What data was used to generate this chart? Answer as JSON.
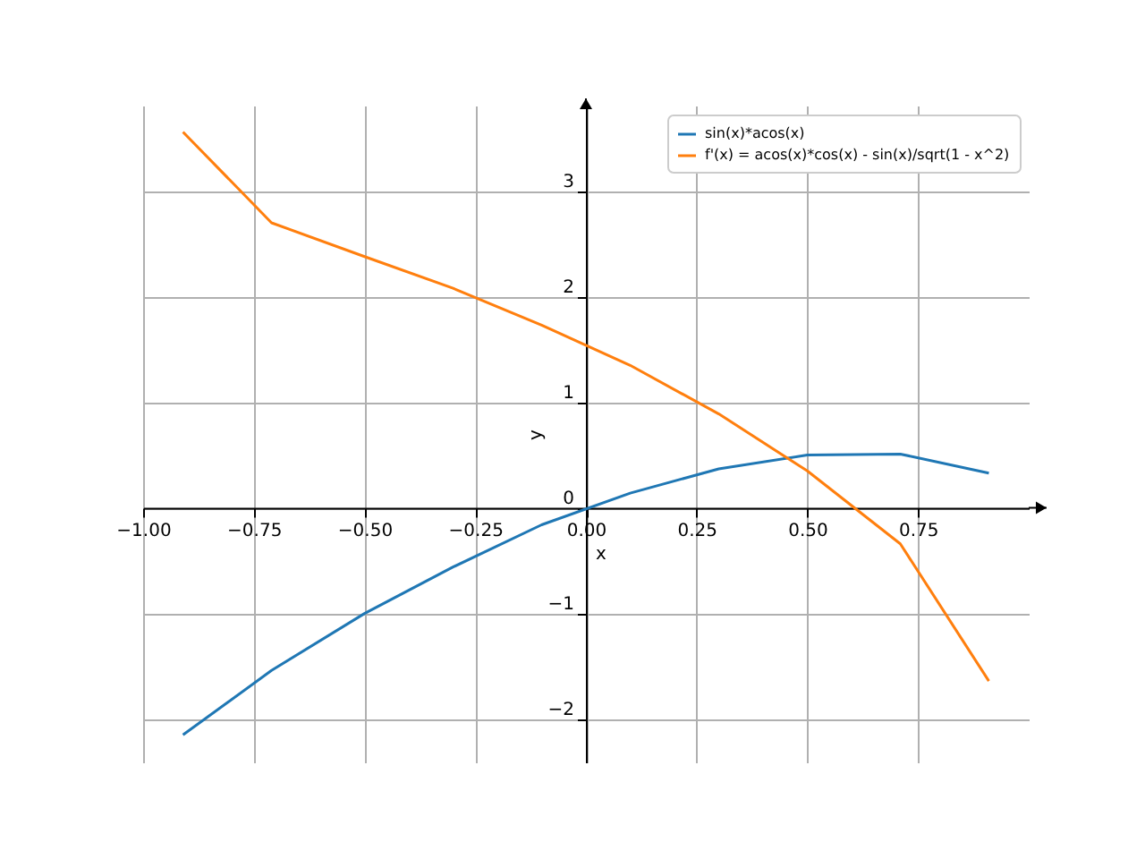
{
  "chart_data": {
    "type": "line",
    "xlabel": "x",
    "ylabel": "y",
    "x": [
      -0.91,
      -0.71,
      -0.5,
      -0.3,
      -0.1,
      0.1,
      0.3,
      0.5,
      0.71,
      0.91
    ],
    "series": [
      {
        "name": "sin(x)*acos(x)",
        "color": "#1f77b4",
        "values": [
          -2.15,
          -1.54,
          -1.0,
          -0.56,
          -0.16,
          0.14,
          0.37,
          0.5,
          0.51,
          0.33
        ]
      },
      {
        "name": "f'(x) = acos(x)*cos(x) - sin(x)/sqrt(1 - x^2)",
        "color": "#ff7f0e",
        "values": [
          3.56,
          2.7,
          2.38,
          2.08,
          1.73,
          1.35,
          0.89,
          0.35,
          -0.34,
          -1.64
        ]
      }
    ],
    "xlim": [
      -1.0,
      1.0
    ],
    "ylim": [
      -2.41,
      3.81
    ],
    "xticks": [
      {
        "value": -1,
        "label": "−1.00"
      },
      {
        "value": -0.75,
        "label": "−0.75"
      },
      {
        "value": -0.5,
        "label": "−0.50"
      },
      {
        "value": -0.25,
        "label": "−0.25"
      },
      {
        "value": 0,
        "label": "0.00"
      },
      {
        "value": 0.25,
        "label": "0.25"
      },
      {
        "value": 0.5,
        "label": "0.50"
      },
      {
        "value": 0.75,
        "label": "0.75"
      }
    ],
    "yticks": [
      {
        "value": -2,
        "label": "−2"
      },
      {
        "value": -1,
        "label": "−1"
      },
      {
        "value": 0,
        "label": "0"
      },
      1,
      2,
      3
    ],
    "grid": true,
    "legend": "top right",
    "marker": "none",
    "line_style": "solid"
  }
}
